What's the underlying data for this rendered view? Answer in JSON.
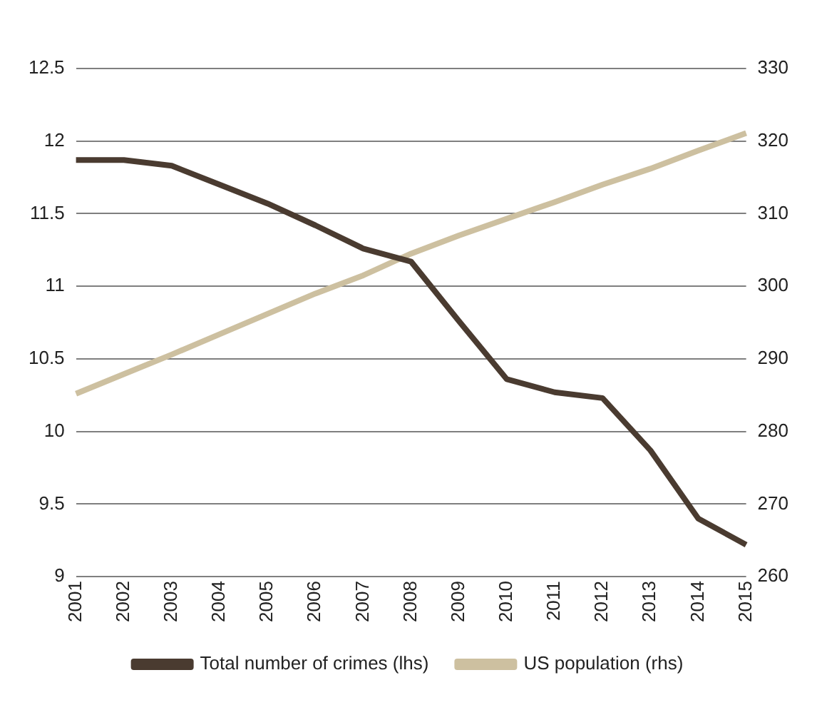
{
  "chart_data": {
    "type": "line",
    "categories": [
      "2001",
      "2002",
      "2003",
      "2004",
      "2005",
      "2006",
      "2007",
      "2008",
      "2009",
      "2010",
      "2011",
      "2012",
      "2013",
      "2014",
      "2015"
    ],
    "series": [
      {
        "name": "Total number of crimes (lhs)",
        "color": "#4a3b30",
        "values": [
          11.87,
          11.87,
          11.83,
          11.7,
          11.57,
          11.42,
          11.26,
          11.17,
          10.76,
          10.36,
          10.27,
          10.23,
          9.87,
          9.4,
          9.22
        ]
      },
      {
        "name": "US population (rhs)",
        "color": "#cdc0a0",
        "axis": "y2",
        "values": [
          285.2,
          287.9,
          290.6,
          293.4,
          296.2,
          299,
          301.5,
          304.5,
          307,
          309.3,
          311.6,
          314,
          316.2,
          318.7,
          321.1
        ]
      }
    ],
    "ylim": [
      9,
      12.5
    ],
    "yticks": [
      9,
      9.5,
      10,
      10.5,
      11,
      11.5,
      12,
      12.5
    ],
    "y2lim": [
      260,
      330
    ],
    "y2ticks": [
      260,
      270,
      280,
      290,
      300,
      310,
      320,
      330
    ],
    "grid": "y",
    "legend": "bottom",
    "marker": "none",
    "line_style": "solid"
  }
}
